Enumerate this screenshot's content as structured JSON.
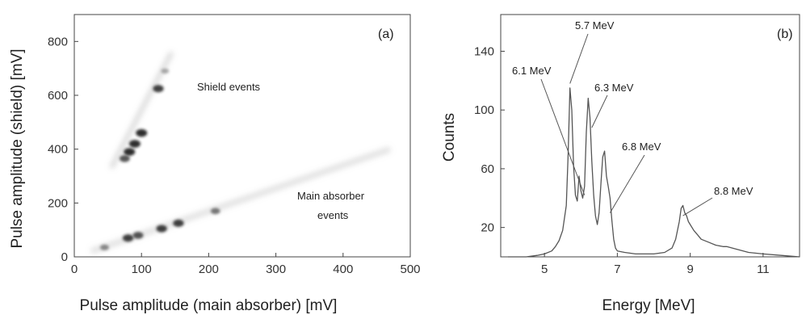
{
  "chart_data": [
    {
      "type": "scatter",
      "panel": "(a)",
      "xlabel": "Pulse amplitude (main absorber) [mV]",
      "ylabel": "Pulse amplitude (shield) [mV]",
      "xlim": [
        0,
        500
      ],
      "ylim": [
        0,
        900
      ],
      "xticks": [
        0,
        100,
        200,
        300,
        400,
        500
      ],
      "yticks": [
        0,
        200,
        400,
        600,
        800
      ],
      "grid": false,
      "annotations": [
        {
          "text": "Shield events",
          "x": 200,
          "y": 630
        },
        {
          "text": "Main absorber",
          "x": 420,
          "y": 230
        },
        {
          "text": "events",
          "x": 420,
          "y": 150
        }
      ],
      "series": [
        {
          "clusters": [
            {
              "x": 125,
              "y": 625,
              "intensity": 0.9
            },
            {
              "x": 135,
              "y": 690,
              "intensity": 0.3
            },
            {
              "x": 100,
              "y": 460,
              "intensity": 1.0
            },
            {
              "x": 90,
              "y": 420,
              "intensity": 1.0
            },
            {
              "x": 82,
              "y": 390,
              "intensity": 1.0
            },
            {
              "x": 75,
              "y": 365,
              "intensity": 0.8
            },
            {
              "x": 45,
              "y": 35,
              "intensity": 0.5
            },
            {
              "x": 80,
              "y": 70,
              "intensity": 0.9
            },
            {
              "x": 95,
              "y": 80,
              "intensity": 0.8
            },
            {
              "x": 130,
              "y": 105,
              "intensity": 0.9
            },
            {
              "x": 155,
              "y": 125,
              "intensity": 0.9
            },
            {
              "x": 210,
              "y": 170,
              "intensity": 0.6
            }
          ]
        }
      ]
    },
    {
      "type": "line",
      "panel": "(b)",
      "xlabel": "Energy [MeV]",
      "ylabel": "Counts",
      "xlim": [
        3.8,
        12
      ],
      "ylim": [
        0,
        165
      ],
      "xticks": [
        5,
        7,
        9,
        11
      ],
      "yticks": [
        20,
        60,
        100,
        140
      ],
      "grid": false,
      "x": [
        4.0,
        4.5,
        4.8,
        5.0,
        5.2,
        5.3,
        5.4,
        5.5,
        5.6,
        5.65,
        5.7,
        5.75,
        5.8,
        5.85,
        5.9,
        5.95,
        6.0,
        6.05,
        6.1,
        6.15,
        6.2,
        6.25,
        6.3,
        6.35,
        6.4,
        6.45,
        6.5,
        6.55,
        6.6,
        6.65,
        6.7,
        6.75,
        6.8,
        6.85,
        6.9,
        6.95,
        7.0,
        7.2,
        7.5,
        8.0,
        8.3,
        8.5,
        8.6,
        8.7,
        8.75,
        8.8,
        8.85,
        8.9,
        8.95,
        9.0,
        9.1,
        9.2,
        9.3,
        9.5,
        9.7,
        9.9,
        10.0,
        10.3,
        10.6,
        11.0,
        11.5,
        12.0
      ],
      "values": [
        0,
        0,
        1,
        2,
        4,
        7,
        11,
        18,
        35,
        70,
        115,
        100,
        62,
        42,
        38,
        55,
        45,
        40,
        48,
        85,
        108,
        95,
        65,
        42,
        28,
        22,
        30,
        50,
        68,
        72,
        55,
        48,
        40,
        25,
        12,
        6,
        4,
        3,
        2,
        2,
        3,
        6,
        12,
        24,
        33,
        35,
        30,
        28,
        24,
        22,
        18,
        15,
        12,
        10,
        8,
        7,
        7,
        5,
        3,
        2,
        1,
        0
      ],
      "annotations": [
        {
          "text": "6.1 MeV",
          "x": 6.1,
          "y": 42
        },
        {
          "text": "5.7 MeV",
          "x": 5.7,
          "y": 118
        },
        {
          "text": "6.3 MeV",
          "x": 6.3,
          "y": 88
        },
        {
          "text": "6.8 MeV",
          "x": 6.8,
          "y": 30
        },
        {
          "text": "8.8 MeV",
          "x": 8.8,
          "y": 28
        }
      ]
    }
  ],
  "panel_a_label": "(a)",
  "panel_b_label": "(b)"
}
